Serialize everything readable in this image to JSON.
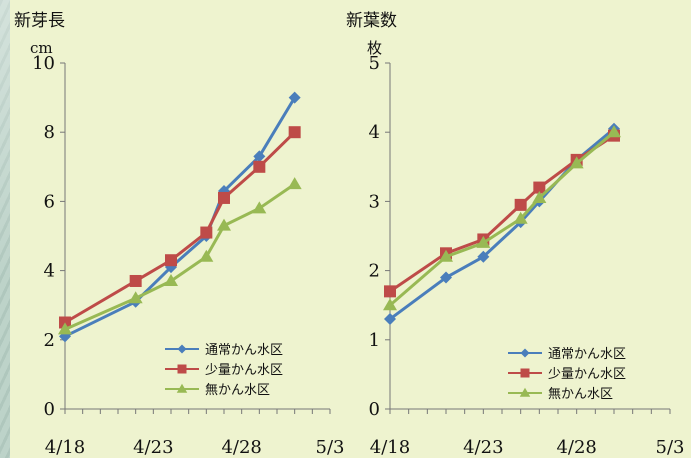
{
  "chart_data": [
    {
      "type": "line",
      "ylabel": "新芽長",
      "yunit": "cm",
      "ylim": [
        0,
        10
      ],
      "yticks": [
        "0",
        "2",
        "4",
        "6",
        "8",
        "10"
      ],
      "xticks": [
        "4/18",
        "4/23",
        "4/28",
        "5/3"
      ],
      "legend_position": "bottom-right",
      "series": [
        {
          "name": "通常かん水区",
          "color": "#4a7ebb",
          "marker": "diamond",
          "x": [
            "4/18",
            "4/22",
            "4/24",
            "4/26",
            "4/27",
            "4/29",
            "5/1"
          ],
          "values": [
            2.1,
            3.1,
            4.1,
            5.0,
            6.3,
            7.3,
            9.0
          ]
        },
        {
          "name": "少量かん水区",
          "color": "#be4b48",
          "marker": "square",
          "x": [
            "4/18",
            "4/22",
            "4/24",
            "4/26",
            "4/27",
            "4/29",
            "5/1"
          ],
          "values": [
            2.5,
            3.7,
            4.3,
            5.1,
            6.1,
            7.0,
            8.0
          ]
        },
        {
          "name": "無かん水区",
          "color": "#98b954",
          "marker": "triangle",
          "x": [
            "4/18",
            "4/22",
            "4/24",
            "4/26",
            "4/27",
            "4/29",
            "5/1"
          ],
          "values": [
            2.3,
            3.2,
            3.7,
            4.4,
            5.3,
            5.8,
            6.5
          ]
        }
      ]
    },
    {
      "type": "line",
      "ylabel": "新葉数",
      "yunit": "枚",
      "ylim": [
        0,
        5
      ],
      "yticks": [
        "0",
        "1",
        "2",
        "3",
        "4",
        "5"
      ],
      "xticks": [
        "4/18",
        "4/23",
        "4/28",
        "5/3"
      ],
      "legend_position": "bottom-right",
      "series": [
        {
          "name": "通常かん水区",
          "color": "#4a7ebb",
          "marker": "diamond",
          "x": [
            "4/18",
            "4/21",
            "4/23",
            "4/25",
            "4/26",
            "4/28",
            "4/30"
          ],
          "values": [
            1.3,
            1.9,
            2.2,
            2.7,
            3.0,
            3.6,
            4.05
          ]
        },
        {
          "name": "少量かん水区",
          "color": "#be4b48",
          "marker": "square",
          "x": [
            "4/18",
            "4/21",
            "4/23",
            "4/25",
            "4/26",
            "4/28",
            "4/30"
          ],
          "values": [
            1.7,
            2.25,
            2.45,
            2.95,
            3.2,
            3.6,
            3.95
          ]
        },
        {
          "name": "無かん水区",
          "color": "#98b954",
          "marker": "triangle",
          "x": [
            "4/18",
            "4/21",
            "4/23",
            "4/25",
            "4/26",
            "4/28",
            "4/30"
          ],
          "values": [
            1.5,
            2.2,
            2.4,
            2.75,
            3.05,
            3.55,
            4.0
          ]
        }
      ]
    }
  ]
}
